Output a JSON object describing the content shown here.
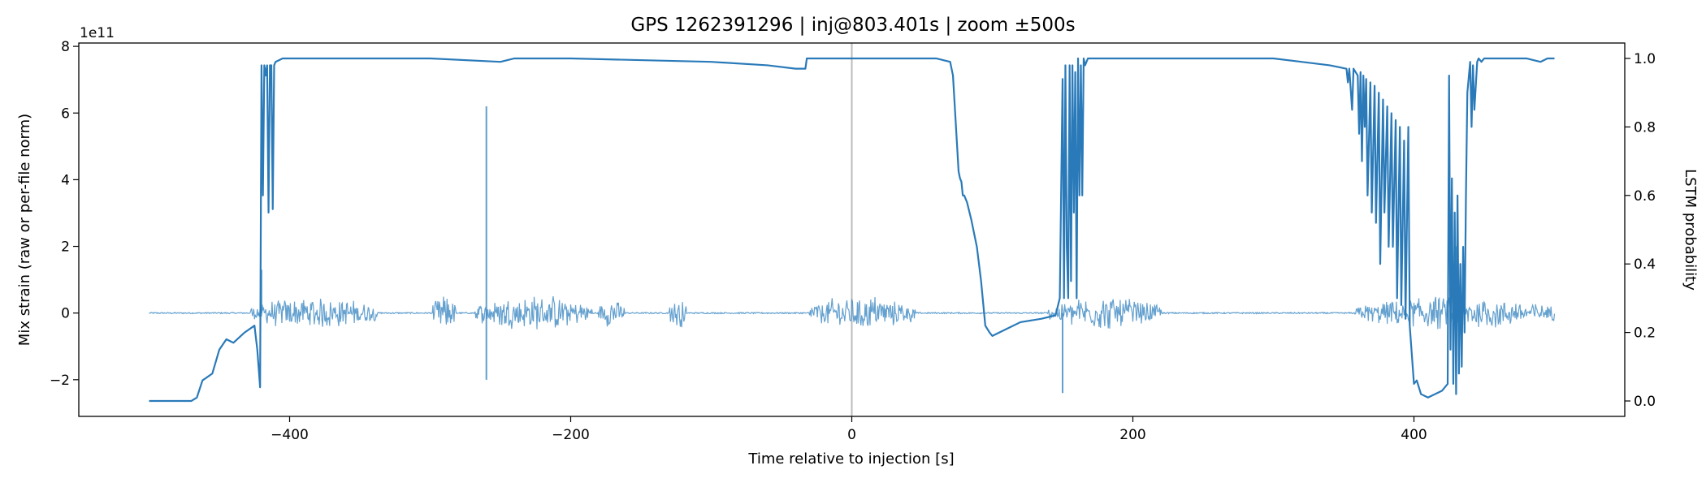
{
  "chart_data": {
    "type": "line",
    "title": "GPS 1262391296 | inj@803.401s | zoom ±500s",
    "xlabel": "Time relative to injection [s]",
    "ylabel_left": "Mix strain (raw or per-file norm)",
    "ylabel_right": "LSTM probability",
    "left_axis_multiplier": "1e11",
    "xlim": [
      -550,
      550
    ],
    "ylim_left": [
      -3.1,
      8.1
    ],
    "ylim_right": [
      -0.045,
      1.045
    ],
    "x_ticks": [
      -400,
      -200,
      0,
      200,
      400
    ],
    "x_tick_labels": [
      "−400",
      "−200",
      "0",
      "200",
      "400"
    ],
    "y_left_ticks": [
      -2,
      0,
      2,
      4,
      6,
      8
    ],
    "y_left_tick_labels": [
      "−2",
      "0",
      "2",
      "4",
      "6",
      "8"
    ],
    "y_right_ticks": [
      0.0,
      0.2,
      0.4,
      0.6,
      0.8,
      1.0
    ],
    "y_right_tick_labels": [
      "0.0",
      "0.2",
      "0.4",
      "0.6",
      "0.8",
      "1.0"
    ],
    "vline_x": 0,
    "grid": false,
    "legend": "none",
    "strain_x_range": [
      -500,
      500
    ],
    "strain_bursts": [
      {
        "start": -428,
        "end": -338,
        "amp": 0.55
      },
      {
        "start": -298,
        "end": -282,
        "amp": 0.65
      },
      {
        "start": -268,
        "end": -185,
        "amp": 0.6
      },
      {
        "start": -180,
        "end": -162,
        "amp": 0.5
      },
      {
        "start": -130,
        "end": -118,
        "amp": 0.55
      },
      {
        "start": -30,
        "end": 45,
        "amp": 0.6
      },
      {
        "start": 140,
        "end": 220,
        "amp": 0.55
      },
      {
        "start": 358,
        "end": 500,
        "amp": 0.55
      }
    ],
    "strain_spikes": [
      {
        "x": -260,
        "y": 6.2
      },
      {
        "x": -260,
        "y": -2.0
      },
      {
        "x": -420,
        "y": 1.3
      },
      {
        "x": 150,
        "y": -2.4
      },
      {
        "x": 428,
        "y": -2.0
      },
      {
        "x": 430,
        "y": 2.0
      }
    ],
    "series": [
      {
        "name": "LSTM probability",
        "axis": "right",
        "x": [
          -500,
          -470,
          -466,
          -462,
          -455,
          -450,
          -445,
          -440,
          -432,
          -425,
          -423,
          -421,
          -420,
          -419,
          -418,
          -417,
          -416,
          -415,
          -414,
          -413,
          -412,
          -411,
          -410,
          -405,
          -300,
          -250,
          -240,
          -200,
          -100,
          -60,
          -40,
          -33,
          -32,
          -30,
          -20,
          60,
          70,
          72,
          76,
          77,
          78,
          79,
          80,
          82,
          85,
          89,
          92,
          95,
          98,
          100,
          105,
          110,
          120,
          135,
          145,
          148,
          150,
          151,
          152,
          153,
          154,
          155,
          156,
          157,
          158,
          159,
          160,
          161,
          162,
          163,
          164,
          165,
          166,
          167,
          168,
          170,
          175,
          300,
          320,
          340,
          352,
          353,
          354,
          356,
          357,
          360,
          361,
          362,
          363,
          364,
          365,
          366,
          367,
          369,
          370,
          372,
          373,
          375,
          376,
          378,
          379,
          381,
          382,
          384,
          385,
          387,
          388,
          390,
          391,
          393,
          394,
          396,
          397,
          400,
          402,
          405,
          410,
          420,
          424,
          425,
          426,
          427,
          428,
          429,
          430,
          431,
          432,
          433,
          434,
          435,
          436,
          437,
          438,
          440,
          441,
          442,
          443,
          445,
          446,
          448,
          450,
          460,
          470,
          480,
          490,
          495,
          500
        ],
        "y": [
          0.0,
          0.0,
          0.01,
          0.06,
          0.08,
          0.15,
          0.18,
          0.17,
          0.2,
          0.22,
          0.15,
          0.04,
          0.98,
          0.6,
          0.98,
          0.95,
          0.98,
          0.55,
          0.98,
          0.98,
          0.56,
          0.98,
          0.99,
          1.0,
          1.0,
          0.99,
          1.0,
          1.0,
          0.99,
          0.98,
          0.97,
          0.97,
          1.0,
          1.0,
          1.0,
          1.0,
          0.99,
          0.95,
          0.67,
          0.65,
          0.64,
          0.6,
          0.6,
          0.58,
          0.53,
          0.45,
          0.35,
          0.22,
          0.2,
          0.19,
          0.2,
          0.21,
          0.23,
          0.24,
          0.25,
          0.3,
          0.94,
          0.3,
          0.98,
          0.45,
          0.3,
          0.98,
          0.35,
          0.98,
          0.55,
          0.96,
          0.3,
          1.0,
          0.6,
          0.98,
          0.6,
          1.0,
          0.98,
          0.99,
          1.0,
          1.0,
          1.0,
          1.0,
          0.99,
          0.98,
          0.97,
          0.93,
          0.97,
          0.85,
          0.97,
          0.95,
          0.78,
          0.96,
          0.7,
          0.95,
          0.8,
          0.94,
          0.6,
          0.93,
          0.55,
          0.92,
          0.52,
          0.9,
          0.4,
          0.88,
          0.55,
          0.86,
          0.45,
          0.84,
          0.45,
          0.82,
          0.3,
          0.8,
          0.28,
          0.76,
          0.24,
          0.8,
          0.22,
          0.05,
          0.06,
          0.02,
          0.01,
          0.03,
          0.05,
          0.95,
          0.15,
          0.65,
          0.05,
          0.55,
          0.02,
          0.6,
          0.08,
          0.4,
          0.1,
          0.45,
          0.2,
          0.6,
          0.9,
          0.99,
          0.8,
          0.98,
          0.85,
          0.99,
          1.0,
          0.99,
          1.0,
          1.0,
          1.0,
          1.0,
          0.99,
          1.0,
          1.0
        ]
      }
    ]
  }
}
